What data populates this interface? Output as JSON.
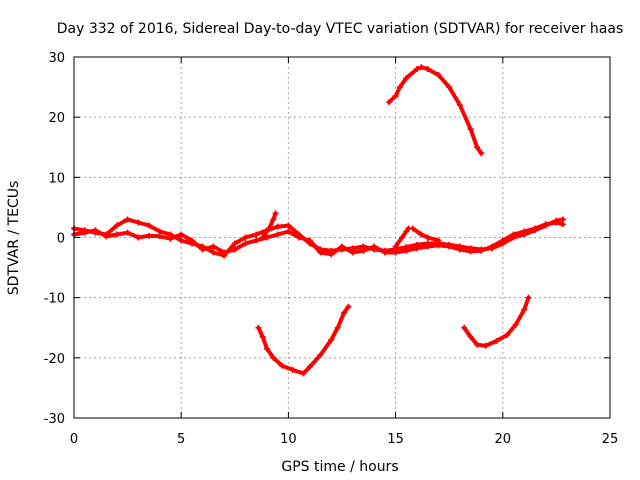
{
  "chart_data": {
    "type": "scatter",
    "title": "Day 332 of 2016, Sidereal Day-to-day VTEC variation (SDTVAR) for receiver haas",
    "xlabel": "GPS time / hours",
    "ylabel": "SDTVAR / TECUs",
    "xlim": [
      0,
      25
    ],
    "ylim": [
      -30,
      30
    ],
    "xticks": [
      0,
      5,
      10,
      15,
      20,
      25
    ],
    "yticks": [
      -30,
      -20,
      -10,
      0,
      10,
      20,
      30
    ],
    "xtick_labels": [
      "0",
      "5",
      "10",
      "15",
      "20",
      "25"
    ],
    "ytick_labels": [
      "-30",
      "-20",
      "-10",
      "0",
      "10",
      "20",
      "30"
    ],
    "grid": true,
    "color": "#ff0000",
    "series": [
      {
        "name": "main-band-a",
        "points": [
          [
            0,
            1.5
          ],
          [
            0.5,
            1.2
          ],
          [
            1,
            0.8
          ],
          [
            1.5,
            0.5
          ],
          [
            2,
            2
          ],
          [
            2.5,
            3
          ],
          [
            3,
            2.5
          ],
          [
            3.5,
            2
          ],
          [
            4,
            1
          ],
          [
            4.5,
            0.5
          ],
          [
            5,
            -0.5
          ],
          [
            5.5,
            -1
          ],
          [
            6,
            -1.5
          ],
          [
            6.5,
            -2.5
          ],
          [
            7,
            -3
          ],
          [
            7.5,
            -1
          ],
          [
            8,
            0
          ],
          [
            8.5,
            0.5
          ],
          [
            9,
            1.2
          ],
          [
            9.5,
            1.8
          ],
          [
            10,
            2
          ],
          [
            10.5,
            0.5
          ],
          [
            11,
            -1
          ],
          [
            11.5,
            -2
          ],
          [
            12,
            -2.2
          ],
          [
            12.5,
            -2
          ],
          [
            13,
            -1.8
          ],
          [
            13.5,
            -1.5
          ],
          [
            14,
            -2
          ],
          [
            14.5,
            -2.2
          ],
          [
            15,
            -2
          ],
          [
            15.5,
            -1.6
          ],
          [
            16,
            -1.2
          ],
          [
            16.5,
            -1
          ],
          [
            17,
            -1
          ],
          [
            17.5,
            -1.2
          ],
          [
            18,
            -1.5
          ],
          [
            18.5,
            -1.8
          ],
          [
            19,
            -2
          ],
          [
            19.5,
            -1.8
          ],
          [
            20,
            -1
          ],
          [
            20.5,
            0
          ],
          [
            21,
            0.5
          ],
          [
            21.5,
            1.2
          ],
          [
            22,
            2
          ],
          [
            22.5,
            2.8
          ],
          [
            22.8,
            3
          ]
        ]
      },
      {
        "name": "main-band-b",
        "points": [
          [
            0,
            0.5
          ],
          [
            0.5,
            0.8
          ],
          [
            1,
            1.2
          ],
          [
            1.5,
            0.2
          ],
          [
            2,
            0.5
          ],
          [
            2.5,
            0.8
          ],
          [
            3,
            0
          ],
          [
            3.5,
            0.3
          ],
          [
            4,
            0.2
          ],
          [
            4.5,
            -0.2
          ],
          [
            5,
            0.5
          ],
          [
            5.5,
            -0.5
          ],
          [
            6,
            -2
          ],
          [
            6.5,
            -1.5
          ],
          [
            7,
            -2.5
          ],
          [
            7.5,
            -2
          ],
          [
            8,
            -1
          ],
          [
            8.5,
            -0.5
          ],
          [
            9,
            0
          ],
          [
            9.5,
            0.5
          ],
          [
            10,
            1
          ],
          [
            10.5,
            0
          ],
          [
            11,
            -0.5
          ],
          [
            11.5,
            -2.5
          ],
          [
            12,
            -2.8
          ],
          [
            12.5,
            -1.5
          ],
          [
            13,
            -2.5
          ],
          [
            13.5,
            -2.2
          ],
          [
            14,
            -1.5
          ],
          [
            14.5,
            -2.5
          ],
          [
            15,
            -2.5
          ],
          [
            15.5,
            -2.2
          ],
          [
            16,
            -1.8
          ],
          [
            16.5,
            -1.5
          ],
          [
            17,
            -1.3
          ],
          [
            17.5,
            -1.5
          ],
          [
            18,
            -2
          ],
          [
            18.5,
            -2.3
          ],
          [
            19,
            -2.2
          ],
          [
            19.5,
            -1.5
          ],
          [
            20,
            -0.5
          ],
          [
            20.5,
            0.5
          ],
          [
            21,
            1
          ],
          [
            21.5,
            1.5
          ],
          [
            22,
            2.2
          ],
          [
            22.5,
            2.5
          ],
          [
            22.8,
            2.2
          ]
        ]
      },
      {
        "name": "spike-9h",
        "points": [
          [
            8.8,
            0
          ],
          [
            9.1,
            1.5
          ],
          [
            9.3,
            3
          ],
          [
            9.4,
            4
          ]
        ]
      },
      {
        "name": "spike-15h",
        "points": [
          [
            15,
            -1.5
          ],
          [
            15.3,
            0
          ],
          [
            15.5,
            1
          ],
          [
            15.6,
            1.5
          ]
        ]
      },
      {
        "name": "spike-16h",
        "points": [
          [
            15.8,
            1.5
          ],
          [
            16.2,
            0.5
          ],
          [
            16.5,
            0
          ],
          [
            17,
            -0.5
          ]
        ]
      },
      {
        "name": "upper-arc",
        "points": [
          [
            14.7,
            22.5
          ],
          [
            15,
            23.5
          ],
          [
            15.2,
            25
          ],
          [
            15.5,
            26.5
          ],
          [
            16,
            28
          ],
          [
            16.2,
            28.3
          ],
          [
            16.5,
            28
          ],
          [
            17,
            27
          ],
          [
            17.5,
            25
          ],
          [
            18,
            22
          ],
          [
            18.5,
            18
          ],
          [
            18.8,
            15
          ],
          [
            19,
            14
          ]
        ]
      },
      {
        "name": "lower-arc-1",
        "points": [
          [
            8.6,
            -15
          ],
          [
            8.8,
            -16.5
          ],
          [
            9,
            -18.5
          ],
          [
            9.3,
            -20
          ],
          [
            9.7,
            -21.3
          ],
          [
            10.2,
            -22
          ],
          [
            10.7,
            -22.6
          ],
          [
            11,
            -21.5
          ],
          [
            11.5,
            -19.5
          ],
          [
            12,
            -17
          ],
          [
            12.3,
            -15
          ],
          [
            12.6,
            -12.5
          ],
          [
            12.8,
            -11.5
          ]
        ]
      },
      {
        "name": "lower-arc-2",
        "points": [
          [
            18.2,
            -15
          ],
          [
            18.5,
            -16.5
          ],
          [
            18.8,
            -17.8
          ],
          [
            19.2,
            -18
          ],
          [
            19.7,
            -17.2
          ],
          [
            20.2,
            -16.2
          ],
          [
            20.6,
            -14.5
          ],
          [
            21,
            -12
          ],
          [
            21.2,
            -10
          ]
        ]
      }
    ]
  }
}
